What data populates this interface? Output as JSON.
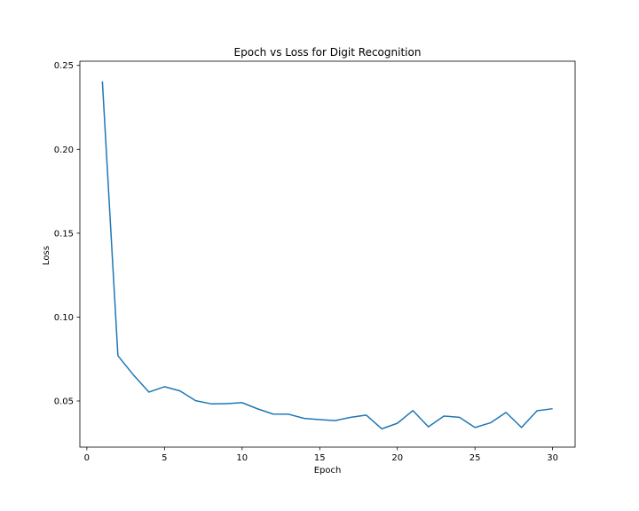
{
  "chart_data": {
    "type": "line",
    "title": "Epoch vs Loss for Digit Recognition",
    "xlabel": "Epoch",
    "ylabel": "Loss",
    "xlim": [
      -0.45,
      31.45
    ],
    "ylim": [
      0.0225,
      0.2525
    ],
    "xticks": [
      0,
      5,
      10,
      15,
      20,
      25,
      30
    ],
    "yticks": [
      0.05,
      0.1,
      0.15,
      0.2,
      0.25
    ],
    "ytick_labels": [
      "0.05",
      "0.10",
      "0.15",
      "0.20",
      "0.25"
    ],
    "grid": false,
    "series": [
      {
        "color": "#1f77b4",
        "x": [
          1,
          2,
          3,
          4,
          5,
          6,
          7,
          8,
          9,
          10,
          11,
          12,
          13,
          14,
          15,
          16,
          17,
          18,
          19,
          20,
          21,
          22,
          23,
          24,
          25,
          26,
          27,
          28,
          29,
          30
        ],
        "y": [
          0.2405,
          0.077,
          0.0655,
          0.0553,
          0.0585,
          0.056,
          0.0502,
          0.0483,
          0.0484,
          0.049,
          0.0453,
          0.0422,
          0.0421,
          0.0396,
          0.0389,
          0.0383,
          0.0403,
          0.0416,
          0.0334,
          0.0367,
          0.0443,
          0.0346,
          0.041,
          0.0403,
          0.0342,
          0.037,
          0.0432,
          0.0342,
          0.0442,
          0.0454
        ]
      }
    ]
  }
}
